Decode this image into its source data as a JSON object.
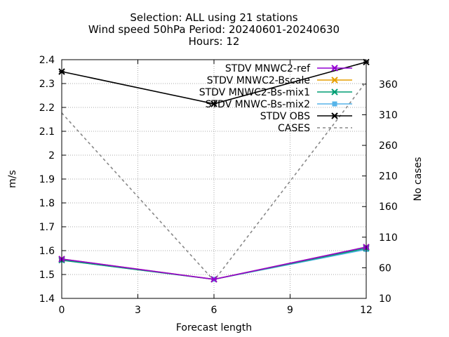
{
  "chart_data": {
    "type": "line",
    "title": [
      "Selection: ALL using    21 stations",
      "Wind speed 50hPa   Period: 20240601-20240630",
      "Hours: 12"
    ],
    "xlabel": "Forecast length",
    "ylabel": "m/s",
    "y2label": "No cases",
    "xlim": [
      0,
      12
    ],
    "ylim": [
      1.4,
      2.4
    ],
    "y2lim": [
      10,
      400
    ],
    "xticks": [
      0,
      3,
      6,
      9,
      12
    ],
    "yticks": [
      1.4,
      1.5,
      1.6,
      1.7,
      1.8,
      1.9,
      2,
      2.1,
      2.2,
      2.3,
      2.4
    ],
    "y2ticks": [
      10,
      60,
      110,
      160,
      210,
      260,
      310,
      360
    ],
    "grid": true,
    "legend_position": "top-right",
    "x": [
      0,
      6,
      12
    ],
    "series": [
      {
        "name": "STDV MNWC2-ref",
        "values": [
          1.565,
          1.48,
          1.615
        ],
        "color": "#9400d3",
        "marker": "x",
        "axis": "y"
      },
      {
        "name": "STDV MNWC2-Bscale",
        "values": [
          1.565,
          1.48,
          1.615
        ],
        "color": "#e69f00",
        "marker": "x",
        "axis": "y"
      },
      {
        "name": "STDV MNWC2-Bs-mix1",
        "values": [
          1.56,
          1.48,
          1.61
        ],
        "color": "#009e73",
        "marker": "x",
        "axis": "y"
      },
      {
        "name": "STDV MNWC-Bs-mix2",
        "values": [
          1.56,
          1.48,
          1.605
        ],
        "color": "#56b4e9",
        "marker": "square",
        "axis": "y"
      },
      {
        "name": "STDV OBS",
        "values": [
          2.35,
          2.215,
          2.39
        ],
        "color": "#000000",
        "marker": "x",
        "axis": "y"
      },
      {
        "name": "CASES",
        "values": [
          313,
          39,
          364
        ],
        "color": "#888888",
        "marker": "none",
        "dashed": true,
        "axis": "y2"
      }
    ]
  }
}
